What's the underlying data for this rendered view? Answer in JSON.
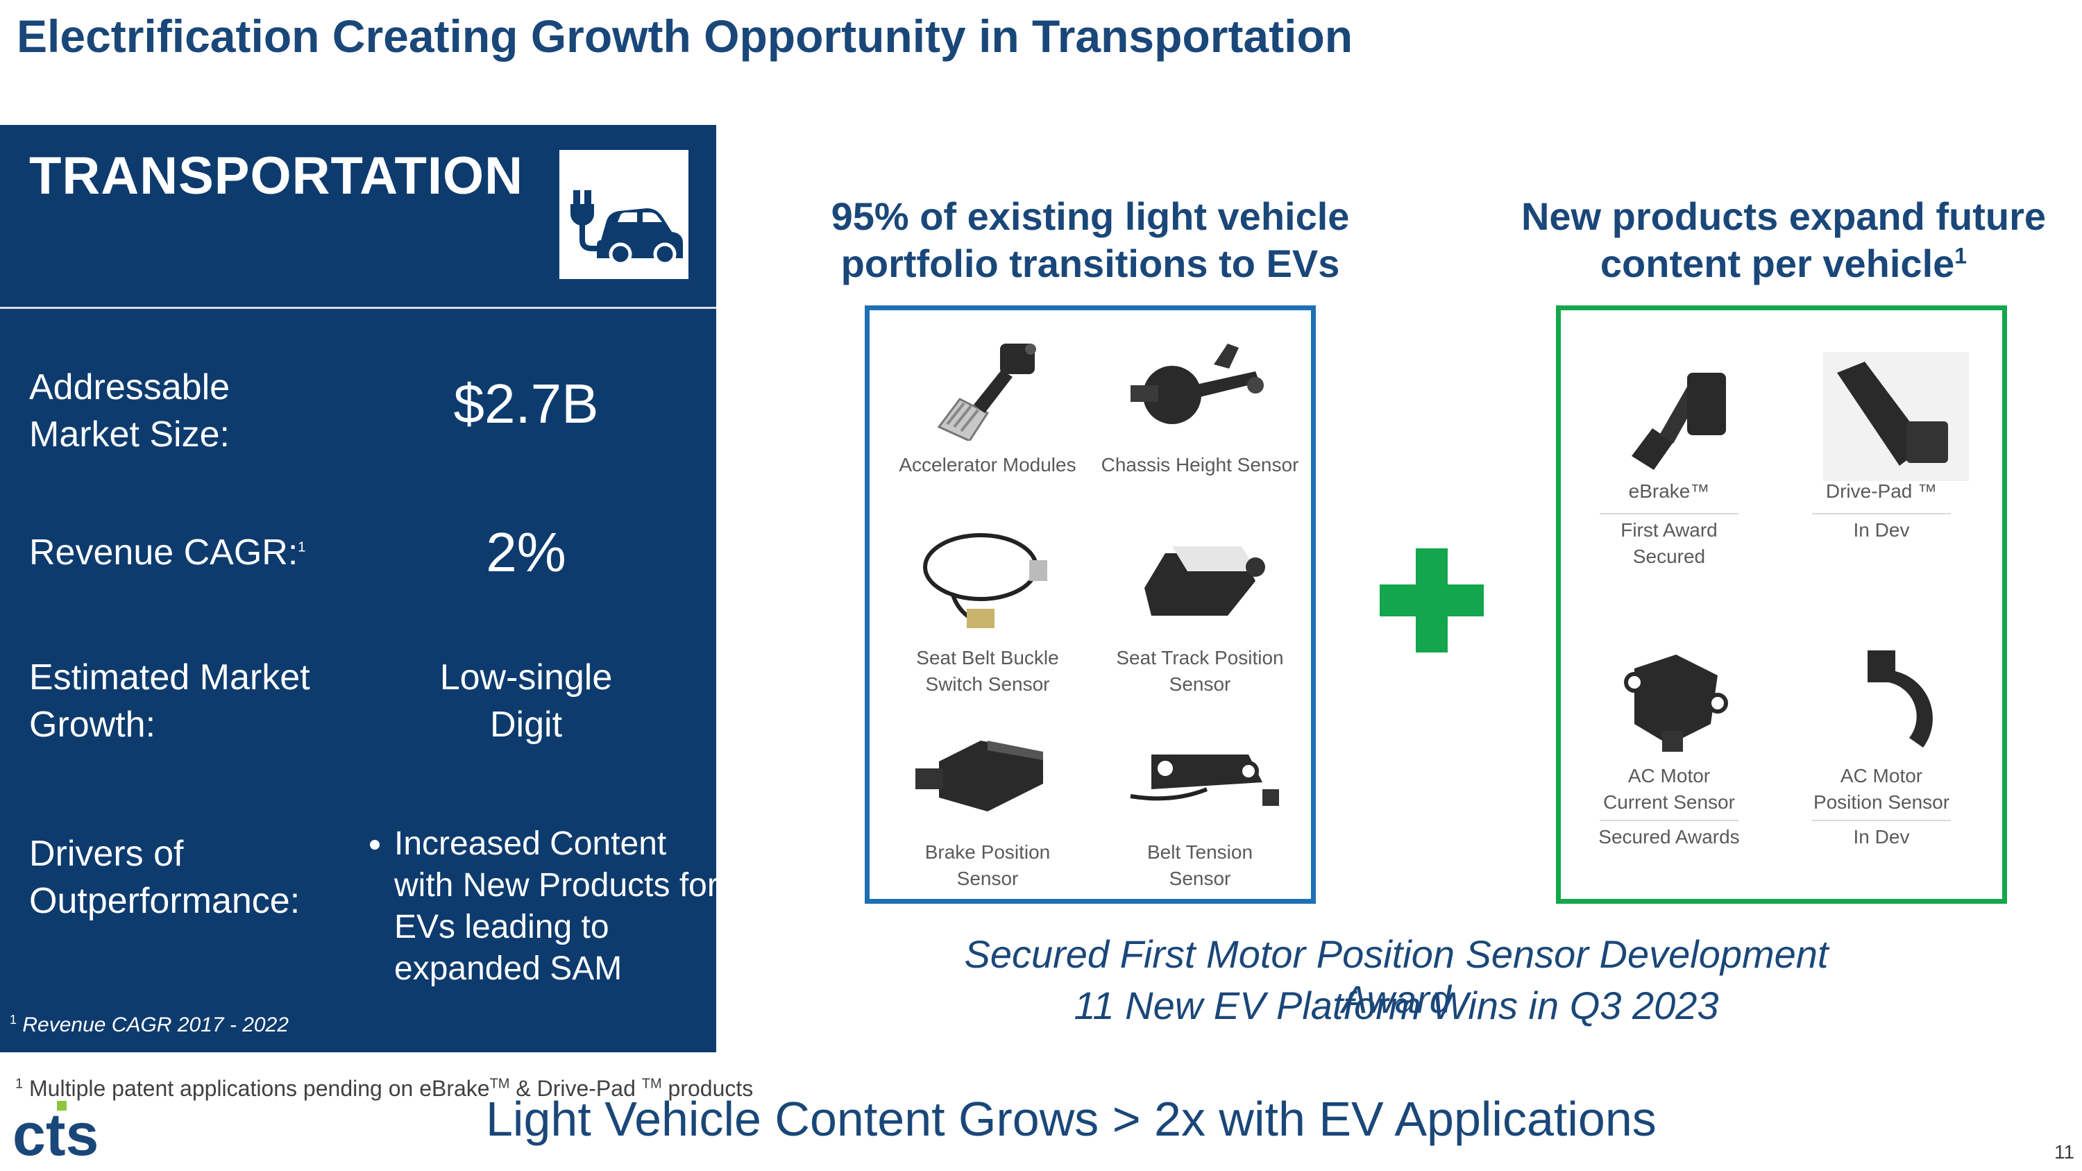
{
  "title": "Electrification Creating Growth Opportunity in Transportation",
  "panel": {
    "heading": "TRANSPORTATION",
    "icon": "ev-car-plug-icon",
    "rows": [
      {
        "label_line1": "Addressable",
        "label_line2": "Market Size:",
        "value": "$2.7B"
      },
      {
        "label": "Revenue CAGR:",
        "sup": "1",
        "value": "2%"
      },
      {
        "label_line1": "Estimated Market",
        "label_line2": "Growth:",
        "value_line1": "Low-single",
        "value_line2": "Digit"
      },
      {
        "label_line1": "Drivers of",
        "label_line2": "Outperformance:",
        "bullets": [
          "Increased Content with New Products for EVs leading to expanded SAM"
        ]
      }
    ],
    "footnote_sup": "1",
    "footnote": "Revenue CAGR 2017 - 2022"
  },
  "existing": {
    "heading_line1": "95% of existing light vehicle",
    "heading_line2": "portfolio transitions to EVs",
    "items": [
      {
        "line1": "Accelerator Modules",
        "line2": ""
      },
      {
        "line1": "Chassis Height Sensor",
        "line2": ""
      },
      {
        "line1": "Seat Belt Buckle",
        "line2": "Switch Sensor"
      },
      {
        "line1": "Seat Track Position",
        "line2": "Sensor"
      },
      {
        "line1": "Brake Position",
        "line2": "Sensor"
      },
      {
        "line1": "Belt Tension",
        "line2": "Sensor"
      }
    ]
  },
  "new_products": {
    "heading_line1": "New products expand future",
    "heading_line2": "content per vehicle",
    "heading_sup": "1",
    "items": [
      {
        "name": "eBrake™",
        "status_line1": "First Award",
        "status_line2": "Secured"
      },
      {
        "name": "Drive-Pad ™",
        "status_line1": "In Dev",
        "status_line2": ""
      },
      {
        "name_line1": "AC Motor",
        "name_line2": "Current Sensor",
        "status_line1": "Secured Awards"
      },
      {
        "name_line1": "AC Motor",
        "name_line2": "Position Sensor",
        "status_line1": "In Dev"
      }
    ]
  },
  "plus_icon": "plus-icon",
  "highlight_line1": "Secured First Motor Position Sensor Development Award",
  "highlight_line2": "11 New EV Platform Wins in Q3 2023",
  "footnote": {
    "sup": "1",
    "text_a": "Multiple patent applications pending on eBrake",
    "tm1": "TM",
    "text_b": " & Drive-Pad ",
    "tm2": "TM",
    "text_c": " products"
  },
  "bottom_line": "Light Vehicle Content Grows > 2x with EV Applications",
  "logo_text": "cts",
  "page_number": "11",
  "colors": {
    "navy": "#0d3b6e",
    "title_blue": "#1a4779",
    "box_blue": "#1f6fb5",
    "green": "#13a64c"
  }
}
